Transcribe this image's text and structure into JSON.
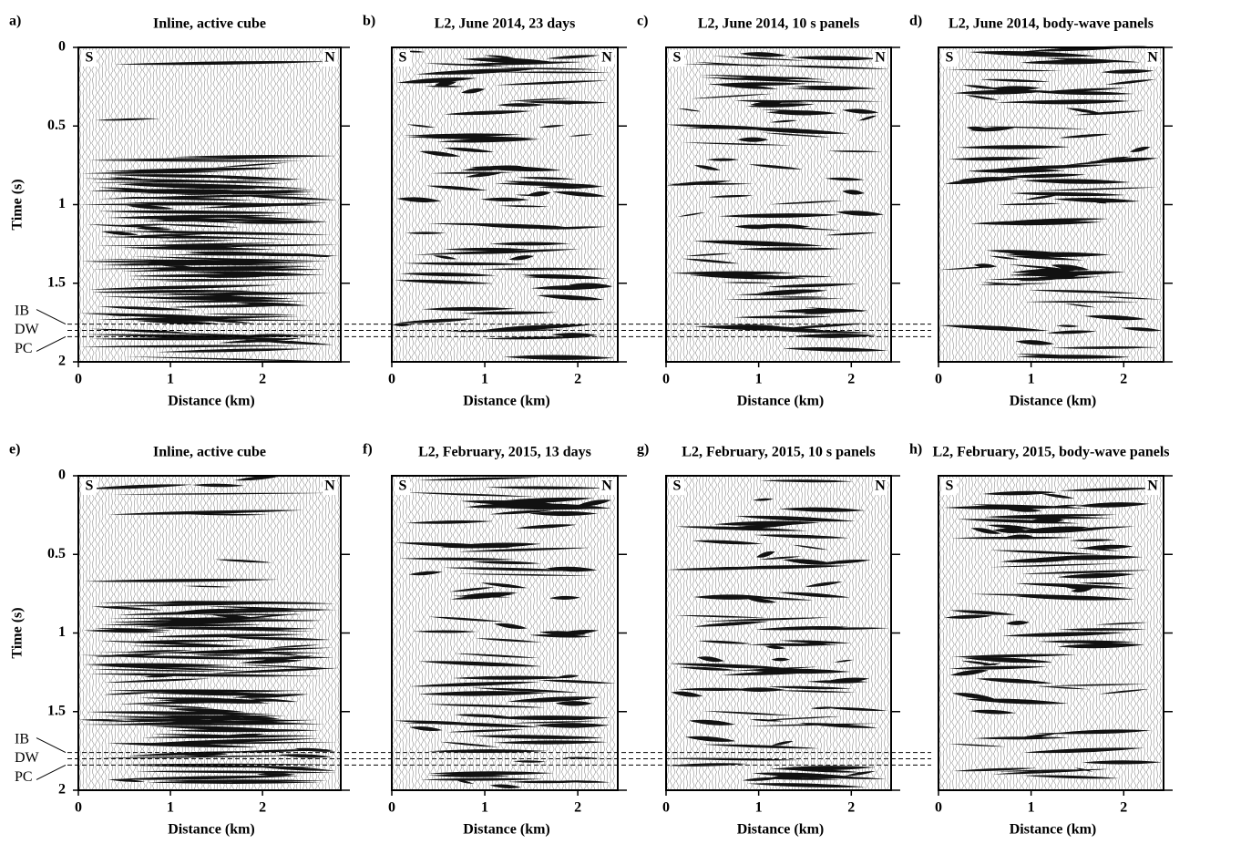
{
  "chart_data": [
    {
      "type": "seismic",
      "panel_label": "a)",
      "title": "Inline, active cube",
      "xlabel": "Distance (km)",
      "ylabel": "Time (s)",
      "xlim": [
        0,
        2.85
      ],
      "ylim": [
        0,
        2
      ],
      "invert_y": true,
      "xticks": [
        0,
        1,
        2
      ],
      "yticks": [
        0,
        0.5,
        1,
        1.5,
        2
      ],
      "ends": [
        "S",
        "N"
      ],
      "horizons": [
        {
          "label": "IB",
          "value": 1.76
        },
        {
          "label": "DW",
          "value": 1.8
        },
        {
          "label": "PC",
          "value": 1.84
        }
      ]
    },
    {
      "type": "seismic",
      "panel_label": "b)",
      "title": "L2, June 2014, 23 days",
      "xlabel": "Distance (km)",
      "xlim": [
        0,
        2.43
      ],
      "ylim": [
        0,
        2
      ],
      "invert_y": true,
      "xticks": [
        0,
        1,
        2
      ],
      "yticks": [
        0,
        0.5,
        1,
        1.5,
        2
      ],
      "ends": [
        "S",
        "N"
      ]
    },
    {
      "type": "seismic",
      "panel_label": "c)",
      "title": "L2, June 2014, 10 s panels",
      "xlabel": "Distance (km)",
      "xlim": [
        0,
        2.43
      ],
      "ylim": [
        0,
        2
      ],
      "invert_y": true,
      "xticks": [
        0,
        1,
        2
      ],
      "yticks": [
        0,
        0.5,
        1,
        1.5,
        2
      ],
      "ends": [
        "S",
        "N"
      ]
    },
    {
      "type": "seismic",
      "panel_label": "d)",
      "title": "L2, June 2014, body-wave panels",
      "xlabel": "Distance (km)",
      "xlim": [
        0,
        2.43
      ],
      "ylim": [
        0,
        2
      ],
      "invert_y": true,
      "xticks": [
        0,
        1,
        2
      ],
      "yticks": [
        0,
        0.5,
        1,
        1.5,
        2
      ],
      "ends": [
        "S",
        "N"
      ]
    },
    {
      "type": "seismic",
      "panel_label": "e)",
      "title": "Inline, active cube",
      "xlabel": "Distance (km)",
      "ylabel": "Time (s)",
      "xlim": [
        0,
        2.85
      ],
      "ylim": [
        0,
        2
      ],
      "invert_y": true,
      "xticks": [
        0,
        1,
        2
      ],
      "yticks": [
        0,
        0.5,
        1,
        1.5,
        2
      ],
      "ends": [
        "S",
        "N"
      ],
      "horizons": [
        {
          "label": "IB",
          "value": 1.76
        },
        {
          "label": "DW",
          "value": 1.8
        },
        {
          "label": "PC",
          "value": 1.84
        }
      ]
    },
    {
      "type": "seismic",
      "panel_label": "f)",
      "title": "L2, February, 2015, 13 days",
      "xlabel": "Distance (km)",
      "xlim": [
        0,
        2.43
      ],
      "ylim": [
        0,
        2
      ],
      "invert_y": true,
      "xticks": [
        0,
        1,
        2
      ],
      "yticks": [
        0,
        0.5,
        1,
        1.5,
        2
      ],
      "ends": [
        "S",
        "N"
      ]
    },
    {
      "type": "seismic",
      "panel_label": "g)",
      "title": "L2, February, 2015, 10 s panels",
      "xlabel": "Distance (km)",
      "xlim": [
        0,
        2.43
      ],
      "ylim": [
        0,
        2
      ],
      "invert_y": true,
      "xticks": [
        0,
        1,
        2
      ],
      "yticks": [
        0,
        0.5,
        1,
        1.5,
        2
      ],
      "ends": [
        "S",
        "N"
      ]
    },
    {
      "type": "seismic",
      "panel_label": "h)",
      "title": "L2, February, 2015, body-wave panels",
      "xlabel": "Distance (km)",
      "xlim": [
        0,
        2.43
      ],
      "ylim": [
        0,
        2
      ],
      "invert_y": true,
      "xticks": [
        0,
        1,
        2
      ],
      "yticks": [
        0,
        0.5,
        1,
        1.5,
        2
      ],
      "ends": [
        "S",
        "N"
      ]
    }
  ]
}
